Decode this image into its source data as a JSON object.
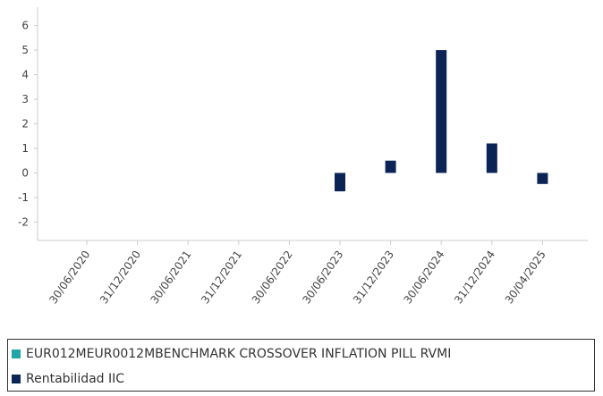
{
  "chart_data": {
    "type": "bar",
    "categories": [
      "30/06/2020",
      "31/12/2020",
      "30/06/2021",
      "31/12/2021",
      "30/06/2022",
      "30/06/2023",
      "31/12/2023",
      "30/06/2024",
      "31/12/2024",
      "30/04/2025"
    ],
    "series": [
      {
        "name": "EUR012MEUR0012MBENCHMARK CROSSOVER INFLATION PILL RVMI",
        "color": "#20a6a6",
        "values": [
          null,
          null,
          null,
          null,
          null,
          null,
          null,
          null,
          null,
          null
        ]
      },
      {
        "name": "Rentabilidad IIC",
        "color": "#0c2356",
        "values": [
          null,
          null,
          null,
          null,
          null,
          -0.75,
          0.5,
          5.0,
          1.2,
          -0.45
        ]
      }
    ],
    "ylim": [
      -2.75,
      6.75
    ],
    "yticks": [
      "6",
      "5",
      "4",
      "3",
      "2",
      "1",
      "0",
      "-1",
      "-2"
    ],
    "grid": false,
    "legend_position": "bottom",
    "xlabel": "",
    "ylabel": ""
  }
}
